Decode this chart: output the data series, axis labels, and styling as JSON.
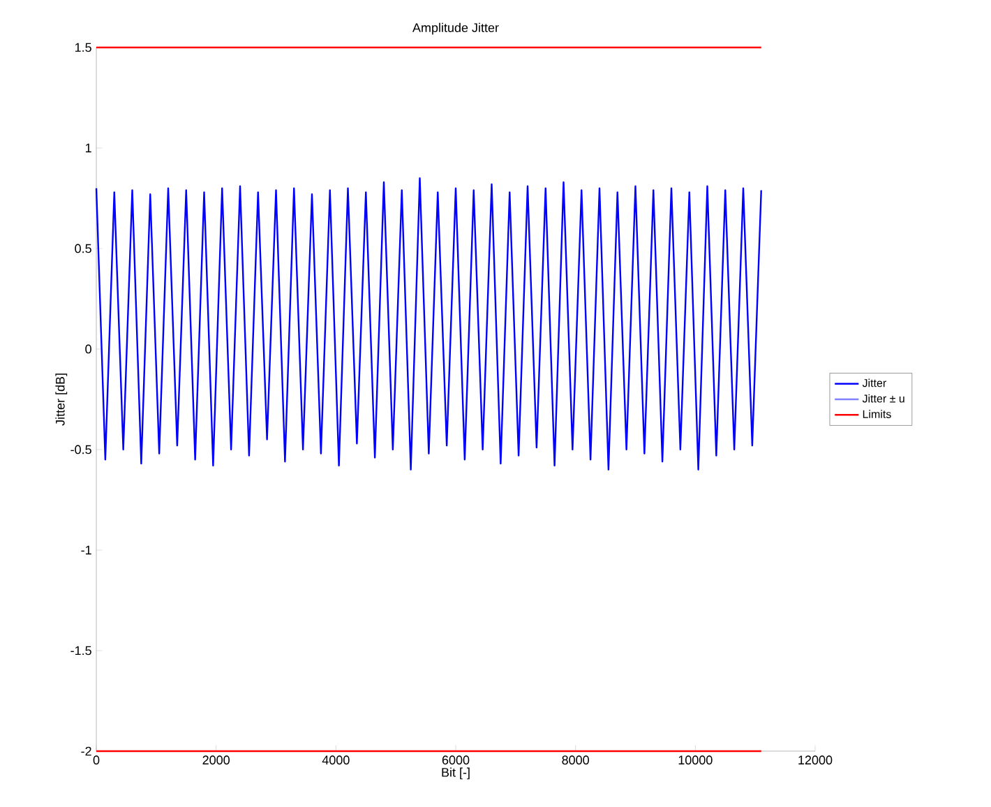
{
  "chart_data": {
    "type": "line",
    "title": "Amplitude Jitter",
    "xlabel": "Bit [-]",
    "ylabel": "Jitter [dB]",
    "xlim": [
      0,
      12000
    ],
    "ylim": [
      -2,
      1.5
    ],
    "xticks": [
      0,
      2000,
      4000,
      6000,
      8000,
      10000,
      12000
    ],
    "yticks": [
      -2,
      -1.5,
      -1,
      -0.5,
      0,
      0.5,
      1,
      1.5
    ],
    "legend": "right",
    "series": [
      {
        "name": "Jitter",
        "color": "#0000ff",
        "x": [
          0,
          150,
          300,
          450,
          600,
          750,
          900,
          1050,
          1200,
          1350,
          1500,
          1650,
          1800,
          1950,
          2100,
          2250,
          2400,
          2550,
          2700,
          2850,
          3000,
          3150,
          3300,
          3450,
          3600,
          3750,
          3900,
          4050,
          4200,
          4350,
          4500,
          4650,
          4800,
          4950,
          5100,
          5250,
          5400,
          5550,
          5700,
          5850,
          6000,
          6150,
          6300,
          6450,
          6600,
          6750,
          6900,
          7050,
          7200,
          7350,
          7500,
          7650,
          7800,
          7950,
          8100,
          8250,
          8400,
          8550,
          8700,
          8850,
          9000,
          9150,
          9300,
          9450,
          9600,
          9750,
          9900,
          10050,
          10200,
          10350,
          10500,
          10650,
          10800,
          10950,
          11100
        ],
        "values": [
          0.8,
          -0.55,
          0.78,
          -0.5,
          0.79,
          -0.57,
          0.77,
          -0.52,
          0.8,
          -0.48,
          0.79,
          -0.55,
          0.78,
          -0.58,
          0.8,
          -0.5,
          0.81,
          -0.53,
          0.78,
          -0.45,
          0.79,
          -0.56,
          0.8,
          -0.5,
          0.77,
          -0.52,
          0.79,
          -0.58,
          0.8,
          -0.47,
          0.78,
          -0.54,
          0.83,
          -0.5,
          0.79,
          -0.6,
          0.85,
          -0.52,
          0.78,
          -0.48,
          0.8,
          -0.55,
          0.79,
          -0.5,
          0.82,
          -0.57,
          0.78,
          -0.53,
          0.81,
          -0.49,
          0.8,
          -0.58,
          0.83,
          -0.5,
          0.79,
          -0.55,
          0.8,
          -0.6,
          0.78,
          -0.5,
          0.81,
          -0.52,
          0.79,
          -0.56,
          0.8,
          -0.5,
          0.78,
          -0.6,
          0.81,
          -0.53,
          0.79,
          -0.5,
          0.8,
          -0.48,
          0.79
        ]
      },
      {
        "name": "Jitter ± u",
        "color": "#7f7fff"
      },
      {
        "name": "Limits",
        "color": "#ff0000",
        "x": [
          0,
          11100
        ],
        "values": [
          1.5,
          1.5
        ]
      },
      {
        "color": "#ff0000",
        "x": [
          0,
          11100
        ],
        "values": [
          -2,
          -2
        ]
      }
    ]
  }
}
